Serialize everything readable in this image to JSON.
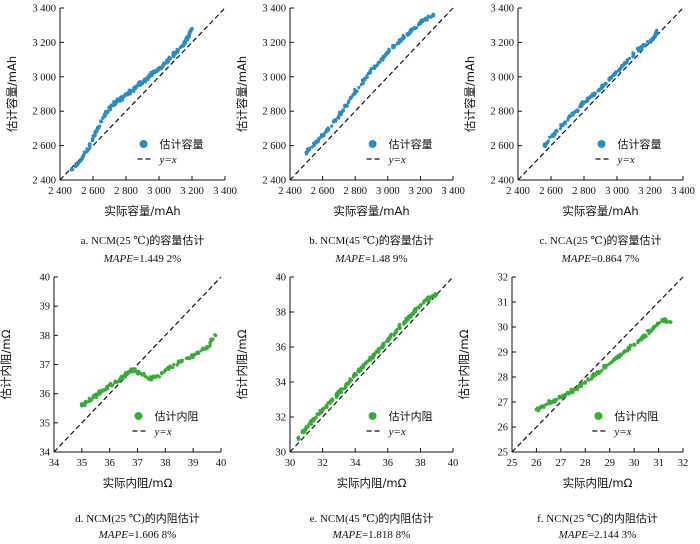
{
  "colors": {
    "capacity": "#2b8cc4",
    "resistance": "#3aaa3a",
    "reference": "#111111"
  },
  "chart_data": [
    {
      "id": "a",
      "type": "scatter",
      "caption": "a.  NCM(25 ℃)的容量估计",
      "mape_label": "MAPE",
      "mape_value": "=1.449 2%",
      "xlabel": "实际容量/mAh",
      "ylabel": "估计容量/mAh",
      "xlim": [
        2400,
        3400
      ],
      "ylim": [
        2400,
        3400
      ],
      "xticks": [
        2400,
        2600,
        2800,
        3000,
        3200,
        3400
      ],
      "yticks": [
        2400,
        2600,
        2800,
        3000,
        3200,
        3400
      ],
      "xtick_labels": [
        "2 400",
        "2 600",
        "2 800",
        "3 000",
        "3 200",
        "3 400"
      ],
      "ytick_labels": [
        "2 400",
        "2 600",
        "2 800",
        "3 000",
        "3 200",
        "3 400"
      ],
      "legend": {
        "points": "估计容量",
        "line": "y=x"
      },
      "legend_position": "bottom-right",
      "color_key": "capacity",
      "series": [
        {
          "name": "估计容量",
          "x": [
            2470,
            2530,
            2580,
            2620,
            2660,
            2700,
            2740,
            2780,
            2820,
            2860,
            2900,
            2940,
            2980,
            3020,
            3060,
            3100,
            3140,
            3180,
            3200
          ],
          "y": [
            2460,
            2520,
            2600,
            2680,
            2760,
            2820,
            2850,
            2880,
            2910,
            2940,
            2970,
            3000,
            3030,
            3060,
            3100,
            3140,
            3180,
            3240,
            3280
          ]
        }
      ]
    },
    {
      "id": "b",
      "type": "scatter",
      "caption": "b.  NCM(45 ℃)的容量估计",
      "mape_label": "MAPE",
      "mape_value": "=1.48 9%",
      "xlabel": "实际容量/mAh",
      "ylabel": "估计容量/mAh",
      "xlim": [
        2400,
        3400
      ],
      "ylim": [
        2400,
        3400
      ],
      "xticks": [
        2400,
        2600,
        2800,
        3000,
        3200,
        3400
      ],
      "yticks": [
        2400,
        2600,
        2800,
        3000,
        3200,
        3400
      ],
      "xtick_labels": [
        "2 400",
        "2 600",
        "2 800",
        "3 000",
        "3 200",
        "3 400"
      ],
      "ytick_labels": [
        "2 400",
        "2 600",
        "2 800",
        "3 000",
        "3 200",
        "3 400"
      ],
      "legend": {
        "points": "估计容量",
        "line": "y=x"
      },
      "legend_position": "bottom-right",
      "color_key": "capacity",
      "series": [
        {
          "name": "估计容量",
          "x": [
            2500,
            2560,
            2620,
            2680,
            2740,
            2800,
            2860,
            2920,
            2980,
            3040,
            3100,
            3160,
            3220,
            3280
          ],
          "y": [
            2560,
            2620,
            2680,
            2750,
            2830,
            2910,
            2990,
            3060,
            3120,
            3180,
            3230,
            3280,
            3330,
            3360
          ]
        }
      ]
    },
    {
      "id": "c",
      "type": "scatter",
      "caption": "c.  NCA(25 ℃)的容量估计",
      "mape_label": "MAPE",
      "mape_value": "=0.864 7%",
      "xlabel": "实际容量/mAh",
      "ylabel": "估计容量/mAh",
      "xlim": [
        2400,
        3400
      ],
      "ylim": [
        2400,
        3400
      ],
      "xticks": [
        2400,
        2600,
        2800,
        3000,
        3200,
        3400
      ],
      "yticks": [
        2400,
        2600,
        2800,
        3000,
        3200,
        3400
      ],
      "xtick_labels": [
        "2 400",
        "2 600",
        "2 800",
        "3 000",
        "3 200",
        "3 400"
      ],
      "ytick_labels": [
        "2 400",
        "2 600",
        "2 800",
        "3 000",
        "3 200",
        "3 400"
      ],
      "legend": {
        "points": "估计容量",
        "line": "y=x"
      },
      "legend_position": "bottom-right",
      "color_key": "capacity",
      "series": [
        {
          "name": "估计容量",
          "x": [
            2560,
            2620,
            2680,
            2740,
            2800,
            2860,
            2920,
            2980,
            3040,
            3100,
            3160,
            3220,
            3240
          ],
          "y": [
            2600,
            2670,
            2730,
            2790,
            2850,
            2900,
            2950,
            3010,
            3070,
            3130,
            3180,
            3220,
            3260
          ]
        }
      ]
    },
    {
      "id": "d",
      "type": "scatter",
      "caption": "d.  NCM(25 ℃)的内阻估计",
      "mape_label": "MAPE",
      "mape_value": "=1.606 8%",
      "xlabel": "实际内阻/mΩ",
      "ylabel": "估计内阻/mΩ",
      "xlim": [
        34,
        40
      ],
      "ylim": [
        34,
        40
      ],
      "xticks": [
        34,
        35,
        36,
        37,
        38,
        39,
        40
      ],
      "yticks": [
        34,
        35,
        36,
        37,
        38,
        39,
        40
      ],
      "xtick_labels": [
        "34",
        "35",
        "36",
        "37",
        "38",
        "39",
        "40"
      ],
      "ytick_labels": [
        "34",
        "35",
        "36",
        "37",
        "38",
        "39",
        "40"
      ],
      "legend": {
        "points": "估计内阻",
        "line": "y=x"
      },
      "legend_position": "bottom-right",
      "color_key": "resistance",
      "series": [
        {
          "name": "估计内阻",
          "x": [
            35.0,
            35.3,
            35.6,
            35.9,
            36.2,
            36.5,
            36.8,
            37.1,
            37.5,
            38.0,
            38.5,
            39.0,
            39.5,
            39.8
          ],
          "y": [
            35.6,
            35.8,
            36.0,
            36.2,
            36.4,
            36.6,
            36.8,
            36.7,
            36.5,
            36.8,
            37.1,
            37.3,
            37.6,
            38.0
          ]
        }
      ]
    },
    {
      "id": "e",
      "type": "scatter",
      "caption": "e.  NCM(45 ℃)的内阻估计",
      "mape_label": "MAPE",
      "mape_value": "=1.818 8%",
      "xlabel": "实际内阻/mΩ",
      "ylabel": "估计内阻/mΩ",
      "xlim": [
        30,
        40
      ],
      "ylim": [
        30,
        40
      ],
      "xticks": [
        30,
        32,
        34,
        36,
        38,
        40
      ],
      "yticks": [
        30,
        32,
        34,
        36,
        38,
        40
      ],
      "xtick_labels": [
        "30",
        "32",
        "34",
        "36",
        "38",
        "40"
      ],
      "ytick_labels": [
        "30",
        "32",
        "34",
        "36",
        "38",
        "40"
      ],
      "legend": {
        "points": "估计内阻",
        "line": "y=x"
      },
      "legend_position": "bottom-right",
      "color_key": "resistance",
      "series": [
        {
          "name": "估计内阻",
          "x": [
            30.5,
            31.0,
            31.5,
            32.0,
            32.5,
            33.0,
            33.5,
            34.0,
            34.5,
            35.0,
            35.5,
            36.0,
            36.5,
            37.0,
            37.5,
            38.0,
            38.5,
            39.0
          ],
          "y": [
            30.8,
            31.4,
            31.9,
            32.4,
            32.9,
            33.4,
            33.9,
            34.4,
            34.9,
            35.4,
            35.9,
            36.4,
            36.9,
            37.4,
            37.9,
            38.4,
            38.8,
            39.0
          ]
        }
      ]
    },
    {
      "id": "f",
      "type": "scatter",
      "caption": "f.  NCN(25 ℃)的内阻估计",
      "mape_label": "MAPE",
      "mape_value": "=2.144 3%",
      "xlabel": "实际内阻/mΩ",
      "ylabel": "估计内阻/mΩ",
      "xlim": [
        25,
        32
      ],
      "ylim": [
        25,
        32
      ],
      "xticks": [
        25,
        26,
        27,
        28,
        29,
        30,
        31,
        32
      ],
      "yticks": [
        25,
        26,
        27,
        28,
        29,
        30,
        31,
        32
      ],
      "xtick_labels": [
        "25",
        "26",
        "27",
        "28",
        "29",
        "30",
        "31",
        "32"
      ],
      "ytick_labels": [
        "25",
        "26",
        "27",
        "28",
        "29",
        "30",
        "31",
        "32"
      ],
      "legend": {
        "points": "估计内阻",
        "line": "y=x"
      },
      "legend_position": "bottom-right",
      "color_key": "resistance",
      "series": [
        {
          "name": "估计内阻",
          "x": [
            26.0,
            26.4,
            26.8,
            27.2,
            27.6,
            28.0,
            28.4,
            28.8,
            29.2,
            29.6,
            30.0,
            30.4,
            30.8,
            31.2,
            31.5
          ],
          "y": [
            26.7,
            26.9,
            27.1,
            27.3,
            27.5,
            27.8,
            28.1,
            28.4,
            28.7,
            29.0,
            29.3,
            29.6,
            30.0,
            30.3,
            30.2
          ]
        }
      ]
    }
  ]
}
